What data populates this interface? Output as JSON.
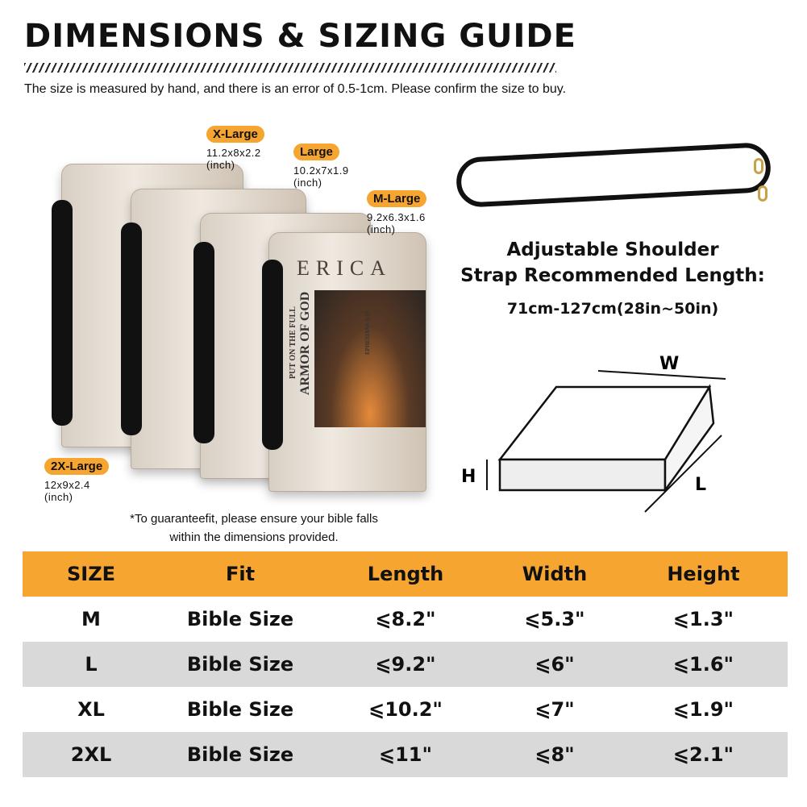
{
  "title": "DIMENSIONS & SIZING GUIDE",
  "subtitle": "The size is measured by hand, and there is an error of 0.5-1cm. Please confirm the size to buy.",
  "sizes": [
    {
      "label": "X-Large",
      "dims": "11.2x8x2.2",
      "unit": "(inch)"
    },
    {
      "label": "Large",
      "dims": "10.2x7x1.9",
      "unit": "(inch)"
    },
    {
      "label": "M-Large",
      "dims": "9.2x6.3x1.6",
      "unit": "(inch)"
    },
    {
      "label": "2X-Large",
      "dims": "12x9x2.4",
      "unit": "(inch)"
    }
  ],
  "book_cover": {
    "title_line1": "PUT ON THE FULL",
    "title_line2": "ARMOR OF GOD",
    "name_letters": [
      "E",
      "R",
      "I",
      "C",
      "A"
    ],
    "verse": "EPHESIANS 6:10"
  },
  "note_line1": "*To guaranteefit, please ensure your bible falls",
  "note_line2": "within the dimensions provided.",
  "strap": {
    "line1": "Adjustable Shoulder",
    "line2": "Strap Recommended Length:",
    "length": "71cm-127cm(28in~50in)"
  },
  "diagram": {
    "w": "W",
    "h": "H",
    "l": "L"
  },
  "table": {
    "headers": [
      "SIZE",
      "Fit",
      "Length",
      "Width",
      "Height"
    ],
    "rows": [
      [
        "M",
        "Bible Size",
        "⩽8.2\"",
        "⩽5.3\"",
        "⩽1.3\""
      ],
      [
        "L",
        "Bible Size",
        "⩽9.2\"",
        "⩽6\"",
        "⩽1.6\""
      ],
      [
        "XL",
        "Bible Size",
        "⩽10.2\"",
        "⩽7\"",
        "⩽1.9\""
      ],
      [
        "2XL",
        "Bible Size",
        "⩽11\"",
        "⩽8\"",
        "⩽2.1\""
      ]
    ]
  },
  "colors": {
    "accent": "#f6a531",
    "row_alt": "#d9d9d9"
  }
}
